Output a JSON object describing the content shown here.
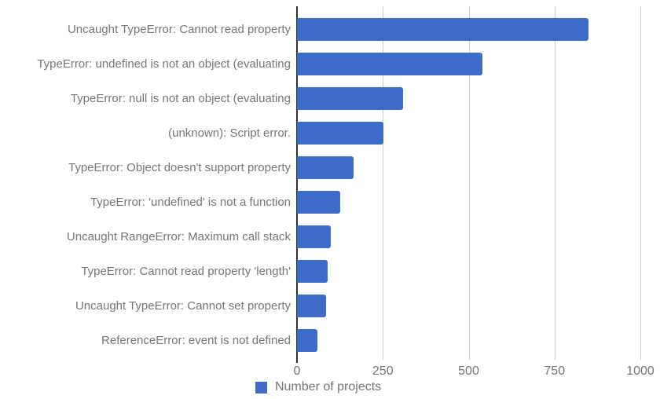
{
  "chart_data": {
    "type": "bar",
    "orientation": "horizontal",
    "title": "",
    "xlabel": "",
    "ylabel": "",
    "series_name": "Number of projects",
    "categories": [
      "Uncaught TypeError: Cannot read property",
      "TypeError: undefined is not an object (evaluating",
      "TypeError: null is not an object (evaluating",
      "(unknown): Script error.",
      "TypeError: Object doesn't support property",
      "TypeError: 'undefined' is not a function",
      "Uncaught RangeError: Maximum call stack",
      "TypeError: Cannot read property 'length'",
      "Uncaught TypeError: Cannot set property",
      "ReferenceError: event is not defined"
    ],
    "values": [
      850,
      540,
      310,
      252,
      165,
      126,
      98,
      90,
      85,
      60
    ],
    "xlim": [
      0,
      1000
    ],
    "x_ticks": [
      0,
      250,
      500,
      750,
      1000
    ],
    "grid": true,
    "legend_position": "bottom"
  },
  "colors": {
    "bar": "#3E6BC7",
    "axis": "#333333",
    "gridline": "#CCCCCC",
    "text": "#757575"
  }
}
